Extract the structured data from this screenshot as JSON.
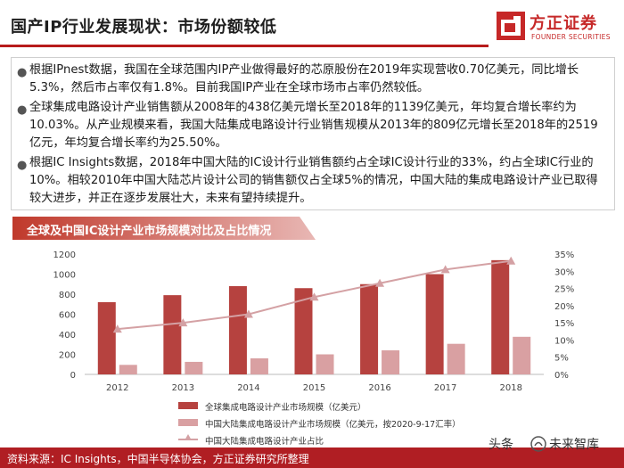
{
  "header": {
    "title": "国产IP行业发展现状：市场份额较低",
    "logo_cn": "方正证券",
    "logo_en": "FOUNDER SECURITIES"
  },
  "bullets": [
    "根据IPnest数据，我国在全球范围内IP产业做得最好的芯原股份在2019年实现营收0.70亿美元，同比增长5.3%，然后市占率仅有1.8%。目前我国IP产业在全球市场市占率仍然较低。",
    "全球集成电路设计产业销售额从2008年的438亿美元增长至2018年的1139亿美元，年均复合增长率约为10.03%。从产业规模来看，我国大陆集成电路设计行业销售规模从2013年的809亿元增长至2018年的2519亿元，年均复合增长率约为25.50%。",
    "根据IC Insights数据，2018年中国大陆的IC设计行业销售额约占全球IC设计行业的33%，约占全球IC行业的10%。相较2010年中国大陆芯片设计公司的销售额仅占全球5%的情况，中国大陆的集成电路设计产业已取得较大进步，并正在逐步发展壮大，未来有望持续提升。"
  ],
  "colors": {
    "accent": "#b71c1c",
    "bar_global": "#b6423f",
    "bar_china": "#d9a0a2",
    "line_share": "#d4a1a4"
  },
  "chart_data": {
    "type": "bar",
    "title": "全球及中国IC设计产业市场规模对比及占比情况",
    "categories": [
      "2012",
      "2013",
      "2014",
      "2015",
      "2016",
      "2017",
      "2018"
    ],
    "series": [
      {
        "name": "全球集成电路设计产业市场规模（亿美元）",
        "type": "bar",
        "axis": "left",
        "values": [
          720,
          790,
          880,
          860,
          900,
          1000,
          1139
        ]
      },
      {
        "name": "中国大陆集成电路设计产业市场规模（亿美元，按2020-9-17汇率）",
        "type": "bar",
        "axis": "left",
        "values": [
          95,
          125,
          160,
          200,
          240,
          305,
          375
        ]
      },
      {
        "name": "中国大陆集成电路设计产业占比",
        "type": "line",
        "axis": "right",
        "values": [
          13.2,
          15,
          17.5,
          22.5,
          26.5,
          30.5,
          33
        ]
      }
    ],
    "y_left": {
      "min": 0,
      "max": 1200,
      "ticks": [
        0,
        200,
        400,
        600,
        800,
        1000,
        1200
      ]
    },
    "y_right": {
      "min": 0,
      "max": 35,
      "ticks": [
        "0%",
        "5%",
        "10%",
        "15%",
        "20%",
        "25%",
        "30%",
        "35%"
      ]
    },
    "grid": false,
    "legend": "bottom"
  },
  "footer": {
    "source": "资料来源：IC Insights，中国半导体协会，方正证券研究所整理",
    "watermark_left": "头条",
    "watermark_right": "未来智库"
  }
}
